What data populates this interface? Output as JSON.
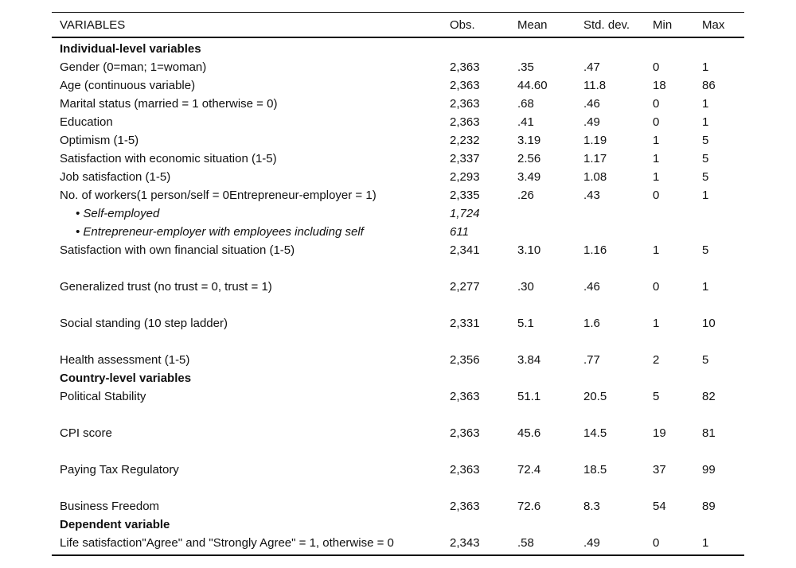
{
  "table": {
    "columns": [
      "VARIABLES",
      "Obs.",
      "Mean",
      "Std. dev.",
      "Min",
      "Max"
    ],
    "rows": [
      {
        "type": "section",
        "label": "Individual-level variables"
      },
      {
        "type": "data",
        "label": "Gender (0=man; 1=woman)",
        "obs": "2,363",
        "mean": ".35",
        "std": ".47",
        "min": "0",
        "max": "1"
      },
      {
        "type": "data",
        "label": "Age (continuous variable)",
        "obs": "2,363",
        "mean": "44.60",
        "std": "11.8",
        "min": "18",
        "max": "86"
      },
      {
        "type": "data",
        "label": "Marital status (married = 1 otherwise = 0)",
        "obs": "2,363",
        "mean": ".68",
        "std": ".46",
        "min": "0",
        "max": "1"
      },
      {
        "type": "data",
        "label": "Education",
        "obs": "2,363",
        "mean": ".41",
        "std": ".49",
        "min": "0",
        "max": "1"
      },
      {
        "type": "data",
        "label": "Optimism (1-5)",
        "obs": "2,232",
        "mean": "3.19",
        "std": "1.19",
        "min": "1",
        "max": "5"
      },
      {
        "type": "data",
        "label": "Satisfaction with economic situation (1-5)",
        "obs": "2,337",
        "mean": "2.56",
        "std": "1.17",
        "min": "1",
        "max": "5"
      },
      {
        "type": "data",
        "label": "Job satisfaction (1-5)",
        "obs": "2,293",
        "mean": "3.49",
        "std": "1.08",
        "min": "1",
        "max": "5"
      },
      {
        "type": "data",
        "label": "No. of workers(1 person/self = 0Entrepreneur-employer = 1)",
        "obs": "2,335",
        "mean": ".26",
        "std": ".43",
        "min": "0",
        "max": "1"
      },
      {
        "type": "sub",
        "label": "• Self-employed",
        "obs": "1,724",
        "mean": "",
        "std": "",
        "min": "",
        "max": ""
      },
      {
        "type": "sub",
        "label": "• Entrepreneur-employer with employees including self",
        "obs": "611",
        "mean": "",
        "std": "",
        "min": "",
        "max": ""
      },
      {
        "type": "data",
        "label": "Satisfaction with own financial situation (1-5)",
        "obs": "2,341",
        "mean": "3.10",
        "std": "1.16",
        "min": "1",
        "max": "5"
      },
      {
        "type": "blank"
      },
      {
        "type": "data",
        "label": "Generalized trust (no trust = 0, trust = 1)",
        "obs": "2,277",
        "mean": ".30",
        "std": ".46",
        "min": "0",
        "max": "1"
      },
      {
        "type": "blank"
      },
      {
        "type": "data",
        "label": "Social standing (10 step ladder)",
        "obs": "2,331",
        "mean": "5.1",
        "std": "1.6",
        "min": "1",
        "max": "10"
      },
      {
        "type": "blank"
      },
      {
        "type": "data",
        "label": "Health assessment (1-5)",
        "obs": "2,356",
        "mean": "3.84",
        "std": ".77",
        "min": "2",
        "max": "5"
      },
      {
        "type": "section",
        "label": "Country-level variables"
      },
      {
        "type": "data",
        "label": "Political Stability",
        "obs": "2,363",
        "mean": "51.1",
        "std": "20.5",
        "min": "5",
        "max": "82"
      },
      {
        "type": "blank"
      },
      {
        "type": "data",
        "label": "CPI score",
        "obs": "2,363",
        "mean": "45.6",
        "std": "14.5",
        "min": "19",
        "max": "81"
      },
      {
        "type": "blank"
      },
      {
        "type": "data",
        "label": "Paying Tax Regulatory",
        "obs": "2,363",
        "mean": "72.4",
        "std": "18.5",
        "min": "37",
        "max": "99"
      },
      {
        "type": "blank"
      },
      {
        "type": "data",
        "label": "Business Freedom",
        "obs": "2,363",
        "mean": "72.6",
        "std": "8.3",
        "min": "54",
        "max": "89"
      },
      {
        "type": "section",
        "label": "Dependent variable"
      },
      {
        "type": "data",
        "label": "Life satisfaction\"Agree\" and \"Strongly Agree\" = 1, otherwise = 0",
        "obs": "2,343",
        "mean": ".58",
        "std": ".49",
        "min": "0",
        "max": "1"
      }
    ]
  }
}
